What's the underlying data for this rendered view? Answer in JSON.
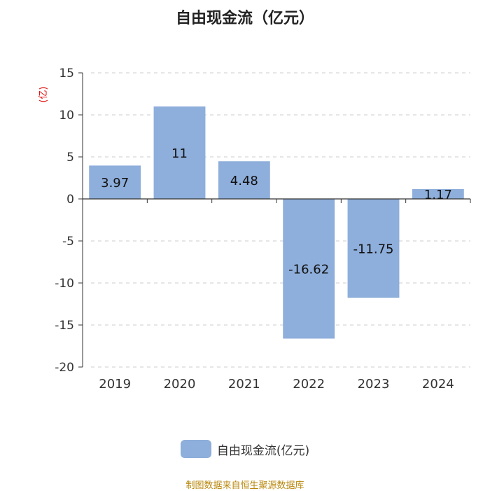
{
  "chart_data": {
    "type": "bar",
    "title": "自由现金流（亿元）",
    "ylabel": "(亿)",
    "xlabel": "",
    "categories": [
      "2019",
      "2020",
      "2021",
      "2022",
      "2023",
      "2024"
    ],
    "series": [
      {
        "name": "自由现金流(亿元)",
        "values": [
          3.97,
          11,
          4.48,
          -16.62,
          -11.75,
          1.17
        ]
      }
    ],
    "data_labels": [
      "3.97",
      "11",
      "4.48",
      "-16.62",
      "-11.75",
      "1.17"
    ],
    "ylim": [
      -20,
      15
    ],
    "yticks": [
      15,
      10,
      5,
      0,
      -5,
      -10,
      -15,
      -20
    ],
    "ytick_labels": [
      "15",
      "10",
      "5",
      "0",
      "-5",
      "-10",
      "-15",
      "-20"
    ],
    "grid": true,
    "legend_position": "bottom-center"
  },
  "colors": {
    "bar": "#8eaedb",
    "ylabel": "#e00000",
    "source": "#b8860b",
    "grid": "#cccccc"
  },
  "source_note": "制图数据来自恒生聚源数据库"
}
